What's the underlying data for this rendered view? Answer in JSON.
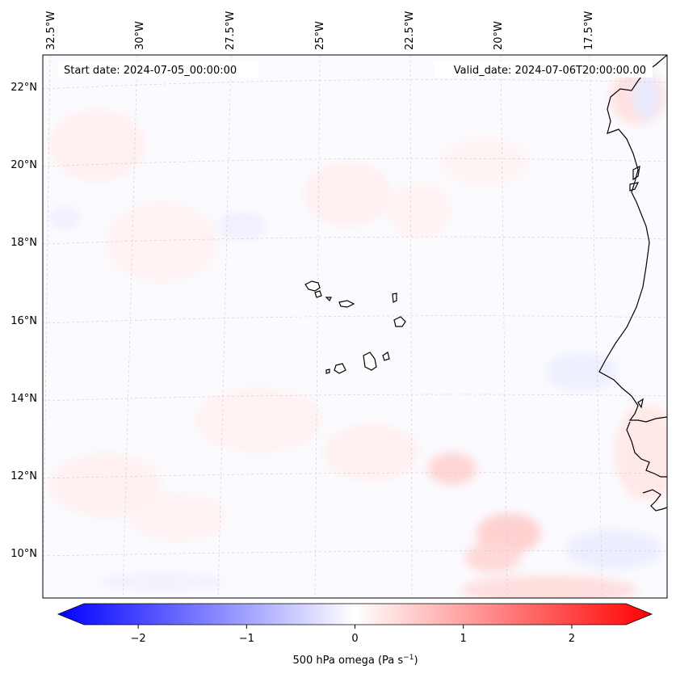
{
  "map": {
    "start_label": "Start date: 2024-07-05_00:00:00",
    "valid_label": "Valid_date: 2024-07-06T20:00:00.00",
    "lon_labels": [
      "32.5°W",
      "30°W",
      "27.5°W",
      "25°W",
      "22.5°W",
      "20°W",
      "17.5°W"
    ],
    "lat_labels": [
      "22°N",
      "20°N",
      "18°N",
      "16°N",
      "14°N",
      "12°N",
      "10°N"
    ],
    "colors": {
      "negative": "#0000ff",
      "zero": "#ffffff",
      "positive": "#ff0000",
      "coastline": "#000000",
      "grid": "#cccccc"
    }
  },
  "colorbar": {
    "label_text": "500 hPa omega (Pa s",
    "label_exp": "−1",
    "label_close": ")",
    "ticks": [
      "−2",
      "−1",
      "0",
      "1",
      "2"
    ],
    "tick_values": [
      -2,
      -1,
      0,
      1,
      2
    ],
    "range": [
      -2.5,
      2.5
    ]
  }
}
